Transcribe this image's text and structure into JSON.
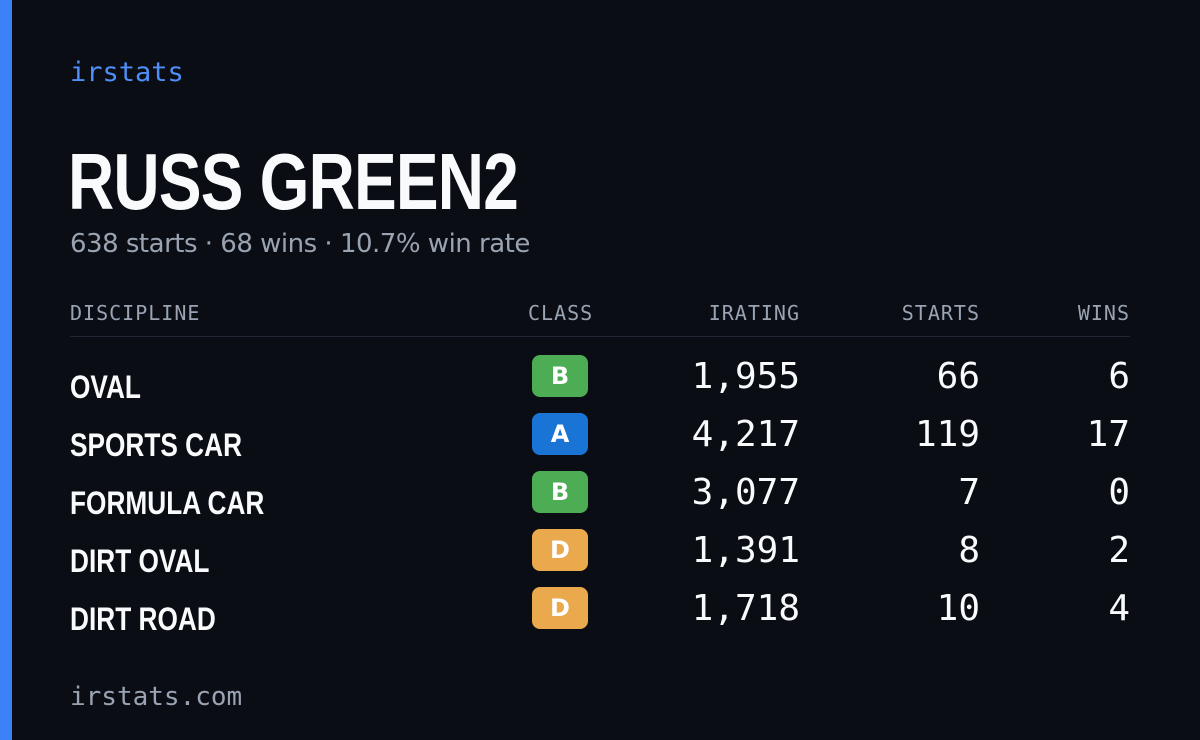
{
  "brand": "irstats",
  "player": {
    "name": "RUSS GREEN2",
    "summary": "638 starts · 68 wins · 10.7% win rate"
  },
  "colors": {
    "accent": "#3b82f6",
    "background": "#0a0d14",
    "class_A": "#1a74d6",
    "class_B": "#4cad55",
    "class_D": "#eaa94c"
  },
  "table": {
    "headers": {
      "discipline": "DISCIPLINE",
      "class": "CLASS",
      "irating": "IRATING",
      "starts": "STARTS",
      "wins": "WINS"
    },
    "rows": [
      {
        "discipline": "OVAL",
        "class": "B",
        "class_color": "#4cad55",
        "irating": "1,955",
        "starts": "66",
        "wins": "6"
      },
      {
        "discipline": "SPORTS CAR",
        "class": "A",
        "class_color": "#1a74d6",
        "irating": "4,217",
        "starts": "119",
        "wins": "17"
      },
      {
        "discipline": "FORMULA CAR",
        "class": "B",
        "class_color": "#4cad55",
        "irating": "3,077",
        "starts": "7",
        "wins": "0"
      },
      {
        "discipline": "DIRT OVAL",
        "class": "D",
        "class_color": "#eaa94c",
        "irating": "1,391",
        "starts": "8",
        "wins": "2"
      },
      {
        "discipline": "DIRT ROAD",
        "class": "D",
        "class_color": "#eaa94c",
        "irating": "1,718",
        "starts": "10",
        "wins": "4"
      }
    ]
  },
  "footer": "irstats.com"
}
